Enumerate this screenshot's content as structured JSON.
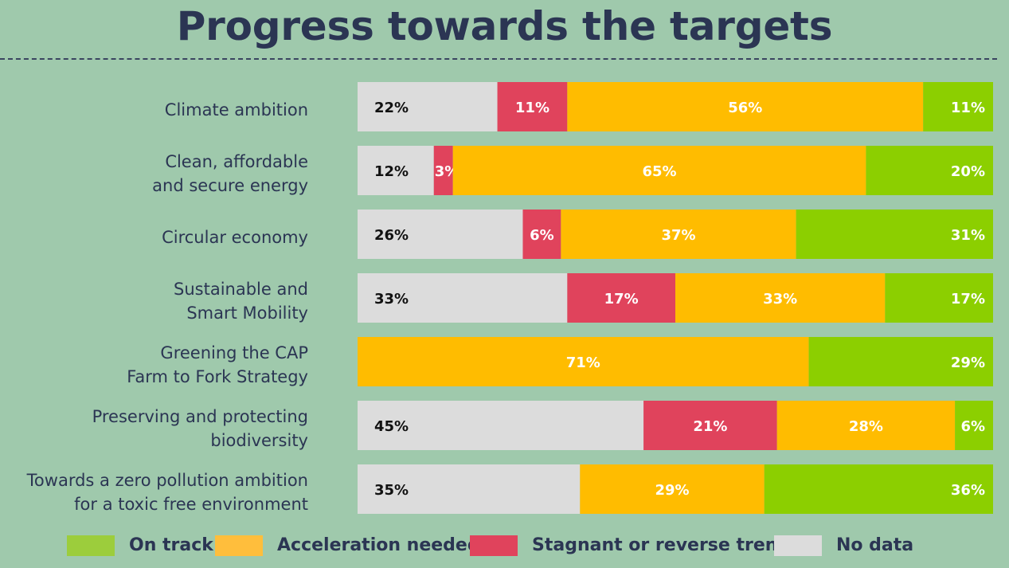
{
  "title": "Progress towards the targets",
  "colors": {
    "background": "#9fc9ac",
    "on_track": "#8ccf00",
    "acceleration_needed": "#ffbc00",
    "stagnant_or_reverse": "#e0435c",
    "no_data": "#dcdcdc"
  },
  "legend": {
    "items": [
      {
        "label": "On track",
        "color": "#9ccd3c"
      },
      {
        "label": "Acceleration needed",
        "color": "#ffbe3c"
      },
      {
        "label": "Stagnant or reverse trend",
        "color": "#e0435c"
      },
      {
        "label": "No data",
        "color": "#dcdcdc"
      }
    ]
  },
  "chart_data": {
    "type": "bar",
    "orientation": "horizontal",
    "stacked": true,
    "title": "Progress towards the targets",
    "xlim": [
      0,
      100
    ],
    "grid": false,
    "legend_placement": "bottom",
    "categories": [
      "Climate ambition",
      "Clean, affordable\nand secure energy",
      "Circular economy",
      "Sustainable and\nSmart Mobility",
      "Greening the CAP\nFarm to Fork Strategy",
      "Preserving and protecting\nbiodiversity",
      "Towards a zero pollution ambition\nfor a toxic free environment"
    ],
    "series": [
      {
        "name": "No data",
        "color": "#dcdcdc",
        "label_color": "#111111",
        "values": [
          22,
          12,
          26,
          33,
          0,
          45,
          35
        ]
      },
      {
        "name": "Stagnant or reverse trend",
        "color": "#e0435c",
        "label_color": "#ffffff",
        "values": [
          11,
          3,
          6,
          17,
          0,
          21,
          0
        ]
      },
      {
        "name": "Acceleration needed",
        "color": "#ffbc00",
        "label_color": "#ffffff",
        "values": [
          56,
          65,
          37,
          33,
          71,
          28,
          29
        ]
      },
      {
        "name": "On track",
        "color": "#8ccf00",
        "label_color": "#ffffff",
        "values": [
          11,
          20,
          31,
          17,
          29,
          6,
          36
        ]
      }
    ],
    "data_labels": [
      [
        "22%",
        "11%",
        "56%",
        "11%"
      ],
      [
        "12%",
        "3%",
        "65%",
        "20%"
      ],
      [
        "26%",
        "6%",
        "37%",
        "31%"
      ],
      [
        "33%",
        "17%",
        "33%",
        "17%"
      ],
      [
        "",
        "",
        "71%",
        "29%"
      ],
      [
        "45%",
        "21%",
        "28%",
        "6%"
      ],
      [
        "35%",
        "",
        "29%",
        "36%"
      ]
    ]
  }
}
